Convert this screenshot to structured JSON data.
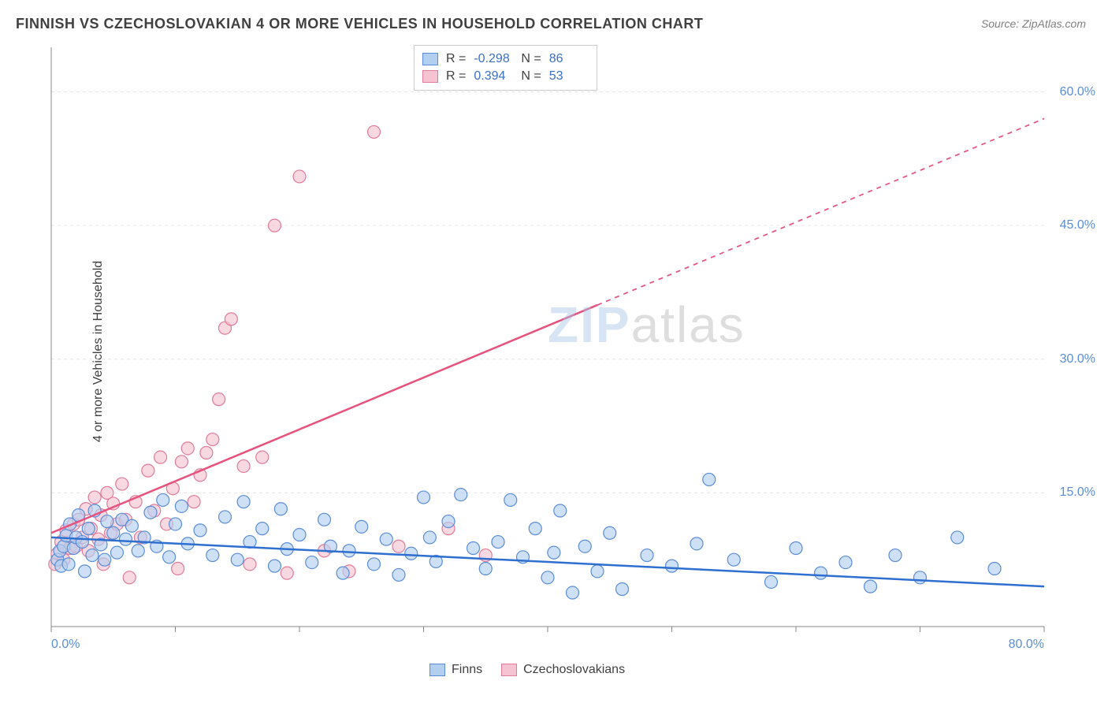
{
  "title": "FINNISH VS CZECHOSLOVAKIAN 4 OR MORE VEHICLES IN HOUSEHOLD CORRELATION CHART",
  "source": "Source: ZipAtlas.com",
  "ylabel": "4 or more Vehicles in Household",
  "watermark_bold": "ZIP",
  "watermark_thin": "atlas",
  "chart": {
    "type": "scatter",
    "xlim": [
      0,
      80
    ],
    "ylim": [
      0,
      65
    ],
    "xtick_labels": [
      "0.0%",
      "80.0%"
    ],
    "xtick_positions": [
      0,
      80
    ],
    "xtick_minor": [
      10,
      20,
      30,
      40,
      50,
      60,
      70
    ],
    "ytick_labels": [
      "15.0%",
      "30.0%",
      "45.0%",
      "60.0%"
    ],
    "ytick_positions": [
      15,
      30,
      45,
      60
    ],
    "grid_color": "#e5e5e5",
    "axis_color": "#888888",
    "background_color": "#ffffff",
    "marker_radius": 8,
    "marker_stroke_width": 1.2,
    "trend_line_width": 2.5,
    "label_fontsize": 16,
    "title_fontsize": 18
  },
  "series": {
    "finns": {
      "label": "Finns",
      "fill": "#b3cff0",
      "stroke": "#5b8dd6",
      "R": "-0.298",
      "N": "86",
      "trend": {
        "x1": 0,
        "y1": 10.0,
        "x2": 80,
        "y2": 4.5,
        "solid_to_x": 80,
        "color": "#2f6fd0"
      },
      "points": [
        [
          0.5,
          7.5
        ],
        [
          0.7,
          8.5
        ],
        [
          0.8,
          6.8
        ],
        [
          1.0,
          9.0
        ],
        [
          1.2,
          10.2
        ],
        [
          1.4,
          7.0
        ],
        [
          1.5,
          11.5
        ],
        [
          1.8,
          8.8
        ],
        [
          2.0,
          10.0
        ],
        [
          2.2,
          12.5
        ],
        [
          2.5,
          9.5
        ],
        [
          2.7,
          6.2
        ],
        [
          3.0,
          11.0
        ],
        [
          3.3,
          8.0
        ],
        [
          3.5,
          13.0
        ],
        [
          4.0,
          9.2
        ],
        [
          4.3,
          7.5
        ],
        [
          4.5,
          11.8
        ],
        [
          5.0,
          10.5
        ],
        [
          5.3,
          8.3
        ],
        [
          5.7,
          12.0
        ],
        [
          6.0,
          9.8
        ],
        [
          6.5,
          11.3
        ],
        [
          7.0,
          8.5
        ],
        [
          7.5,
          10.0
        ],
        [
          8.0,
          12.8
        ],
        [
          8.5,
          9.0
        ],
        [
          9.0,
          14.2
        ],
        [
          9.5,
          7.8
        ],
        [
          10.0,
          11.5
        ],
        [
          10.5,
          13.5
        ],
        [
          11.0,
          9.3
        ],
        [
          12.0,
          10.8
        ],
        [
          13.0,
          8.0
        ],
        [
          14.0,
          12.3
        ],
        [
          15.0,
          7.5
        ],
        [
          15.5,
          14.0
        ],
        [
          16.0,
          9.5
        ],
        [
          17.0,
          11.0
        ],
        [
          18.0,
          6.8
        ],
        [
          18.5,
          13.2
        ],
        [
          19.0,
          8.7
        ],
        [
          20.0,
          10.3
        ],
        [
          21.0,
          7.2
        ],
        [
          22.0,
          12.0
        ],
        [
          22.5,
          9.0
        ],
        [
          23.5,
          6.0
        ],
        [
          24.0,
          8.5
        ],
        [
          25.0,
          11.2
        ],
        [
          26.0,
          7.0
        ],
        [
          27.0,
          9.8
        ],
        [
          28.0,
          5.8
        ],
        [
          29.0,
          8.2
        ],
        [
          30.0,
          14.5
        ],
        [
          30.5,
          10.0
        ],
        [
          31.0,
          7.3
        ],
        [
          32.0,
          11.8
        ],
        [
          33.0,
          14.8
        ],
        [
          34.0,
          8.8
        ],
        [
          35.0,
          6.5
        ],
        [
          36.0,
          9.5
        ],
        [
          37.0,
          14.2
        ],
        [
          38.0,
          7.8
        ],
        [
          39.0,
          11.0
        ],
        [
          40.0,
          5.5
        ],
        [
          40.5,
          8.3
        ],
        [
          41.0,
          13.0
        ],
        [
          42.0,
          3.8
        ],
        [
          43.0,
          9.0
        ],
        [
          44.0,
          6.2
        ],
        [
          45.0,
          10.5
        ],
        [
          46.0,
          4.2
        ],
        [
          48.0,
          8.0
        ],
        [
          50.0,
          6.8
        ],
        [
          52.0,
          9.3
        ],
        [
          53.0,
          16.5
        ],
        [
          55.0,
          7.5
        ],
        [
          58.0,
          5.0
        ],
        [
          60.0,
          8.8
        ],
        [
          62.0,
          6.0
        ],
        [
          64.0,
          7.2
        ],
        [
          66.0,
          4.5
        ],
        [
          68.0,
          8.0
        ],
        [
          70.0,
          5.5
        ],
        [
          73.0,
          10.0
        ],
        [
          76.0,
          6.5
        ]
      ]
    },
    "czechs": {
      "label": "Czechoslovakians",
      "fill": "#f5c3d1",
      "stroke": "#e07b9a",
      "R": "0.394",
      "N": "53",
      "trend": {
        "x1": 0,
        "y1": 10.5,
        "x2": 80,
        "y2": 57.0,
        "solid_to_x": 44,
        "color": "#e6537e"
      },
      "points": [
        [
          0.3,
          7.0
        ],
        [
          0.5,
          8.2
        ],
        [
          0.8,
          9.5
        ],
        [
          1.0,
          7.5
        ],
        [
          1.2,
          10.8
        ],
        [
          1.5,
          8.8
        ],
        [
          1.8,
          11.5
        ],
        [
          2.0,
          9.0
        ],
        [
          2.2,
          12.0
        ],
        [
          2.5,
          10.0
        ],
        [
          2.8,
          13.2
        ],
        [
          3.0,
          8.5
        ],
        [
          3.2,
          11.0
        ],
        [
          3.5,
          14.5
        ],
        [
          3.8,
          9.8
        ],
        [
          4.0,
          12.5
        ],
        [
          4.2,
          7.0
        ],
        [
          4.5,
          15.0
        ],
        [
          4.8,
          10.5
        ],
        [
          5.0,
          13.8
        ],
        [
          5.3,
          11.5
        ],
        [
          5.7,
          16.0
        ],
        [
          6.0,
          12.0
        ],
        [
          6.3,
          5.5
        ],
        [
          6.8,
          14.0
        ],
        [
          7.2,
          10.0
        ],
        [
          7.8,
          17.5
        ],
        [
          8.3,
          13.0
        ],
        [
          8.8,
          19.0
        ],
        [
          9.3,
          11.5
        ],
        [
          9.8,
          15.5
        ],
        [
          10.2,
          6.5
        ],
        [
          10.5,
          18.5
        ],
        [
          11.0,
          20.0
        ],
        [
          11.5,
          14.0
        ],
        [
          12.0,
          17.0
        ],
        [
          12.5,
          19.5
        ],
        [
          13.0,
          21.0
        ],
        [
          13.5,
          25.5
        ],
        [
          14.0,
          33.5
        ],
        [
          14.5,
          34.5
        ],
        [
          15.5,
          18.0
        ],
        [
          16.0,
          7.0
        ],
        [
          17.0,
          19.0
        ],
        [
          18.0,
          45.0
        ],
        [
          19.0,
          6.0
        ],
        [
          20.0,
          50.5
        ],
        [
          22.0,
          8.5
        ],
        [
          24.0,
          6.2
        ],
        [
          26.0,
          55.5
        ],
        [
          28.0,
          9.0
        ],
        [
          32.0,
          11.0
        ],
        [
          35.0,
          8.0
        ]
      ]
    }
  },
  "stats_legend": {
    "rows": [
      {
        "swatch_fill": "#b3cff0",
        "swatch_stroke": "#5b8dd6",
        "r_label": "R =",
        "r_val": "-0.298",
        "n_label": "N =",
        "n_val": "86"
      },
      {
        "swatch_fill": "#f5c3d1",
        "swatch_stroke": "#e07b9a",
        "r_label": "R =",
        "r_val": "0.394",
        "n_label": "N =",
        "n_val": "53"
      }
    ]
  },
  "bottom_legend": {
    "items": [
      {
        "fill": "#b3cff0",
        "stroke": "#5b8dd6",
        "label": "Finns"
      },
      {
        "fill": "#f5c3d1",
        "stroke": "#e07b9a",
        "label": "Czechoslovakians"
      }
    ]
  }
}
